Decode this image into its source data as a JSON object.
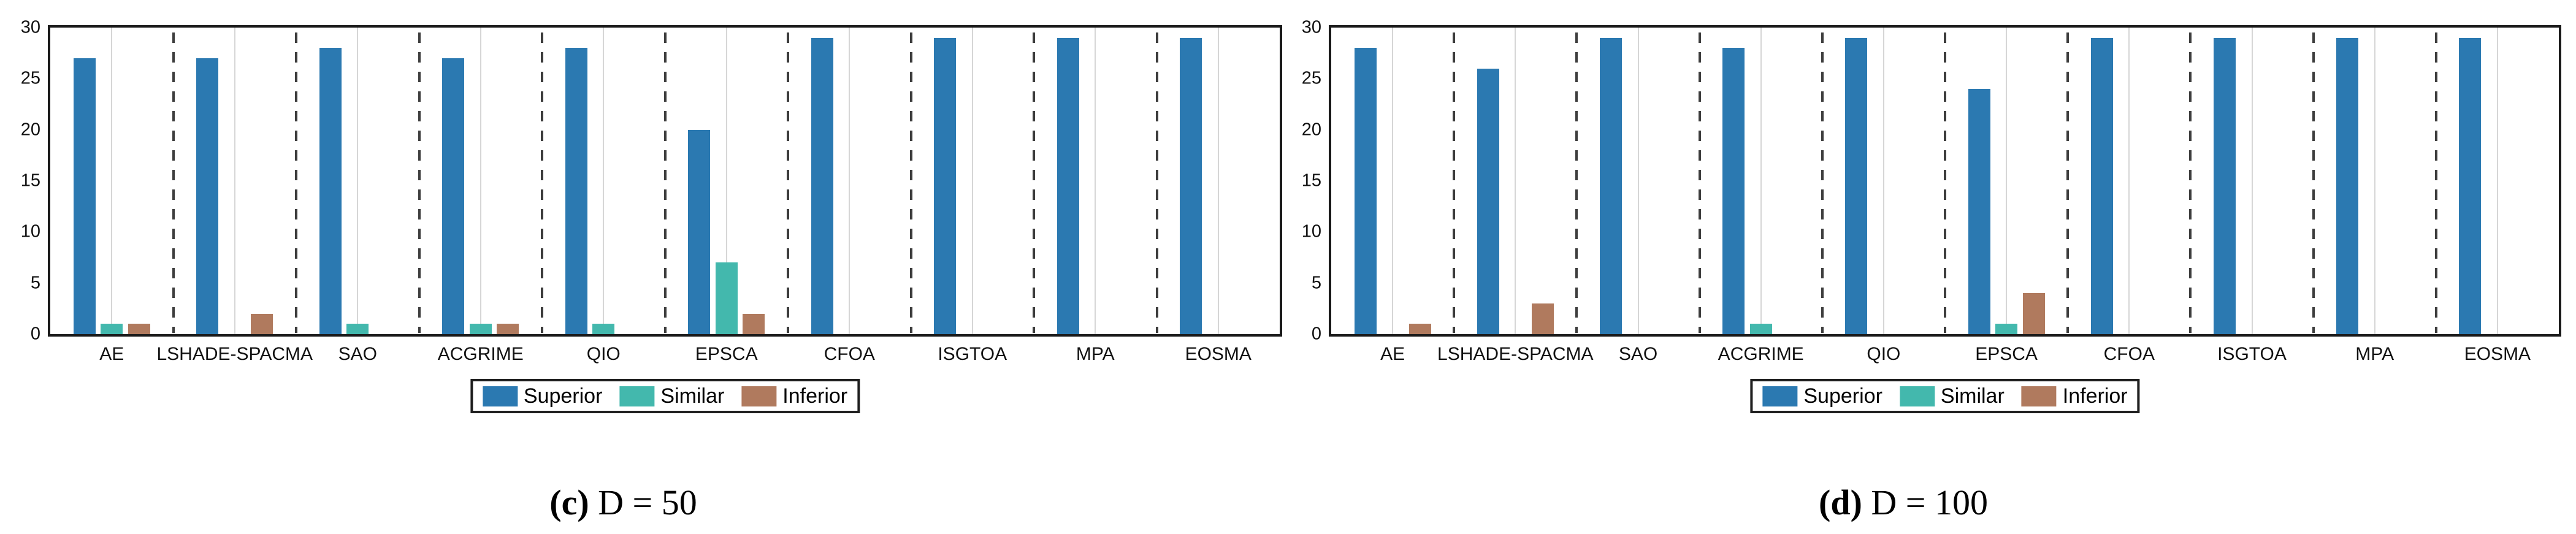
{
  "figure": {
    "colors": {
      "superior": "#2b79b1",
      "similar": "#43b8ad",
      "inferior": "#b07a5e",
      "gridline": "#d6d6d6",
      "separator": "#3d3d3d",
      "axis_border": "#1a1a1a",
      "text": "#111111"
    },
    "legend_labels": [
      "Superior",
      "Similar",
      "Inferior"
    ]
  },
  "chart_data": [
    {
      "type": "bar",
      "caption_label": "(c)",
      "caption_title": "D = 50",
      "categories": [
        "AE",
        "LSHADE-SPACMA",
        "SAO",
        "ACGRIME",
        "QIO",
        "EPSCA",
        "CFOA",
        "ISGTOA",
        "MPA",
        "EOSMA"
      ],
      "series": [
        {
          "name": "Superior",
          "color": "#2b79b1",
          "values": [
            27,
            27,
            28,
            27,
            28,
            20,
            29,
            29,
            29,
            29
          ]
        },
        {
          "name": "Similar",
          "color": "#43b8ad",
          "values": [
            1,
            0,
            1,
            1,
            1,
            7,
            0,
            0,
            0,
            0
          ]
        },
        {
          "name": "Inferior",
          "color": "#b07a5e",
          "values": [
            1,
            2,
            0,
            1,
            0,
            2,
            0,
            0,
            0,
            0
          ]
        }
      ],
      "ylim": [
        0,
        30
      ],
      "yticks": [
        0,
        5,
        10,
        15,
        20,
        25,
        30
      ],
      "grid": "vertical-at-category-centers",
      "group_separators": "dashed-between-categories",
      "legend_position": "below-axis"
    },
    {
      "type": "bar",
      "caption_label": "(d)",
      "caption_title": "D = 100",
      "categories": [
        "AE",
        "LSHADE-SPACMA",
        "SAO",
        "ACGRIME",
        "QIO",
        "EPSCA",
        "CFOA",
        "ISGTOA",
        "MPA",
        "EOSMA"
      ],
      "series": [
        {
          "name": "Superior",
          "color": "#2b79b1",
          "values": [
            28,
            26,
            29,
            28,
            29,
            24,
            29,
            29,
            29,
            29
          ]
        },
        {
          "name": "Similar",
          "color": "#43b8ad",
          "values": [
            0,
            0,
            0,
            1,
            0,
            1,
            0,
            0,
            0,
            0
          ]
        },
        {
          "name": "Inferior",
          "color": "#b07a5e",
          "values": [
            1,
            3,
            0,
            0,
            0,
            4,
            0,
            0,
            0,
            0
          ]
        }
      ],
      "ylim": [
        0,
        30
      ],
      "yticks": [
        0,
        5,
        10,
        15,
        20,
        25,
        30
      ],
      "grid": "vertical-at-category-centers",
      "group_separators": "dashed-between-categories",
      "legend_position": "below-axis"
    }
  ]
}
